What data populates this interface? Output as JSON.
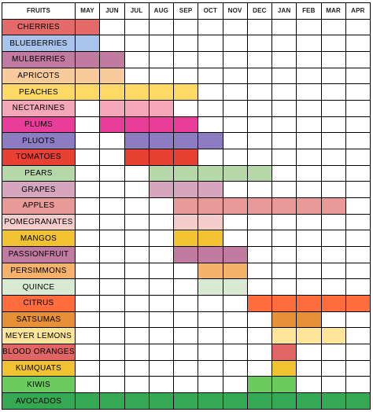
{
  "header": {
    "fruits_label": "FRUITS",
    "months": [
      "MAY",
      "JUN",
      "JUL",
      "AUG",
      "SEP",
      "OCT",
      "NOV",
      "DEC",
      "JAN",
      "FEB",
      "MAR",
      "APR"
    ]
  },
  "fruits": [
    {
      "name": "CHERRIES",
      "color": "#e46a6a",
      "months": [
        0
      ]
    },
    {
      "name": "BLUEBERRIES",
      "color": "#a8c4ec",
      "months": [
        0
      ]
    },
    {
      "name": "MULBERRIES",
      "color": "#c27ba0",
      "months": [
        0,
        1
      ]
    },
    {
      "name": "APRICOTS",
      "color": "#f9cb9c",
      "months": [
        0,
        1
      ]
    },
    {
      "name": "PEACHES",
      "color": "#ffd966",
      "months": [
        0,
        1,
        2,
        3,
        4
      ]
    },
    {
      "name": "NECTARINES",
      "color": "#f4a7b9",
      "months": [
        1,
        2,
        3
      ]
    },
    {
      "name": "PLUMS",
      "color": "#e83e9a",
      "months": [
        1,
        2,
        3,
        4
      ]
    },
    {
      "name": "PLUOTS",
      "color": "#8e7cc3",
      "months": [
        2,
        3,
        4,
        5
      ]
    },
    {
      "name": "TOMATOES",
      "color": "#e84033",
      "months": [
        2,
        3,
        4
      ]
    },
    {
      "name": "PEARS",
      "color": "#b6d7a8",
      "months": [
        3,
        4,
        5,
        6,
        7
      ]
    },
    {
      "name": "GRAPES",
      "color": "#d5a6bd",
      "months": [
        3,
        4,
        5
      ]
    },
    {
      "name": "APPLES",
      "color": "#ea9999",
      "months": [
        4,
        5,
        6,
        7,
        8,
        9,
        10
      ]
    },
    {
      "name": "POMEGRANATES",
      "color": "#f4cccc",
      "months": [
        4,
        5
      ]
    },
    {
      "name": "MANGOS",
      "color": "#f1c232",
      "months": [
        4,
        5
      ]
    },
    {
      "name": "PASSIONFRUIT",
      "color": "#c27ba0",
      "months": [
        4,
        5,
        6
      ]
    },
    {
      "name": "PERSIMMONS",
      "color": "#f6b26b",
      "months": [
        5,
        6
      ]
    },
    {
      "name": "QUINCE",
      "color": "#d9ead3",
      "months": [
        5,
        6
      ]
    },
    {
      "name": "CITRUS",
      "color": "#ff6d3f",
      "months": [
        7,
        8,
        9,
        10,
        11
      ]
    },
    {
      "name": "SATSUMAS",
      "color": "#e69138",
      "months": [
        8,
        9
      ]
    },
    {
      "name": "MEYER LEMONS",
      "color": "#ffe599",
      "months": [
        8,
        9,
        10
      ]
    },
    {
      "name": "BLOOD ORANGES",
      "color": "#e06666",
      "months": [
        8
      ]
    },
    {
      "name": "KUMQUATS",
      "color": "#f1c232",
      "months": [
        8
      ]
    },
    {
      "name": "KIWIS",
      "color": "#6acc5c",
      "months": [
        7,
        8
      ]
    },
    {
      "name": "AVOCADOS",
      "color": "#34a853",
      "months": [
        0,
        1,
        2,
        3,
        4,
        5,
        6,
        7,
        8,
        9,
        10,
        11
      ]
    }
  ]
}
